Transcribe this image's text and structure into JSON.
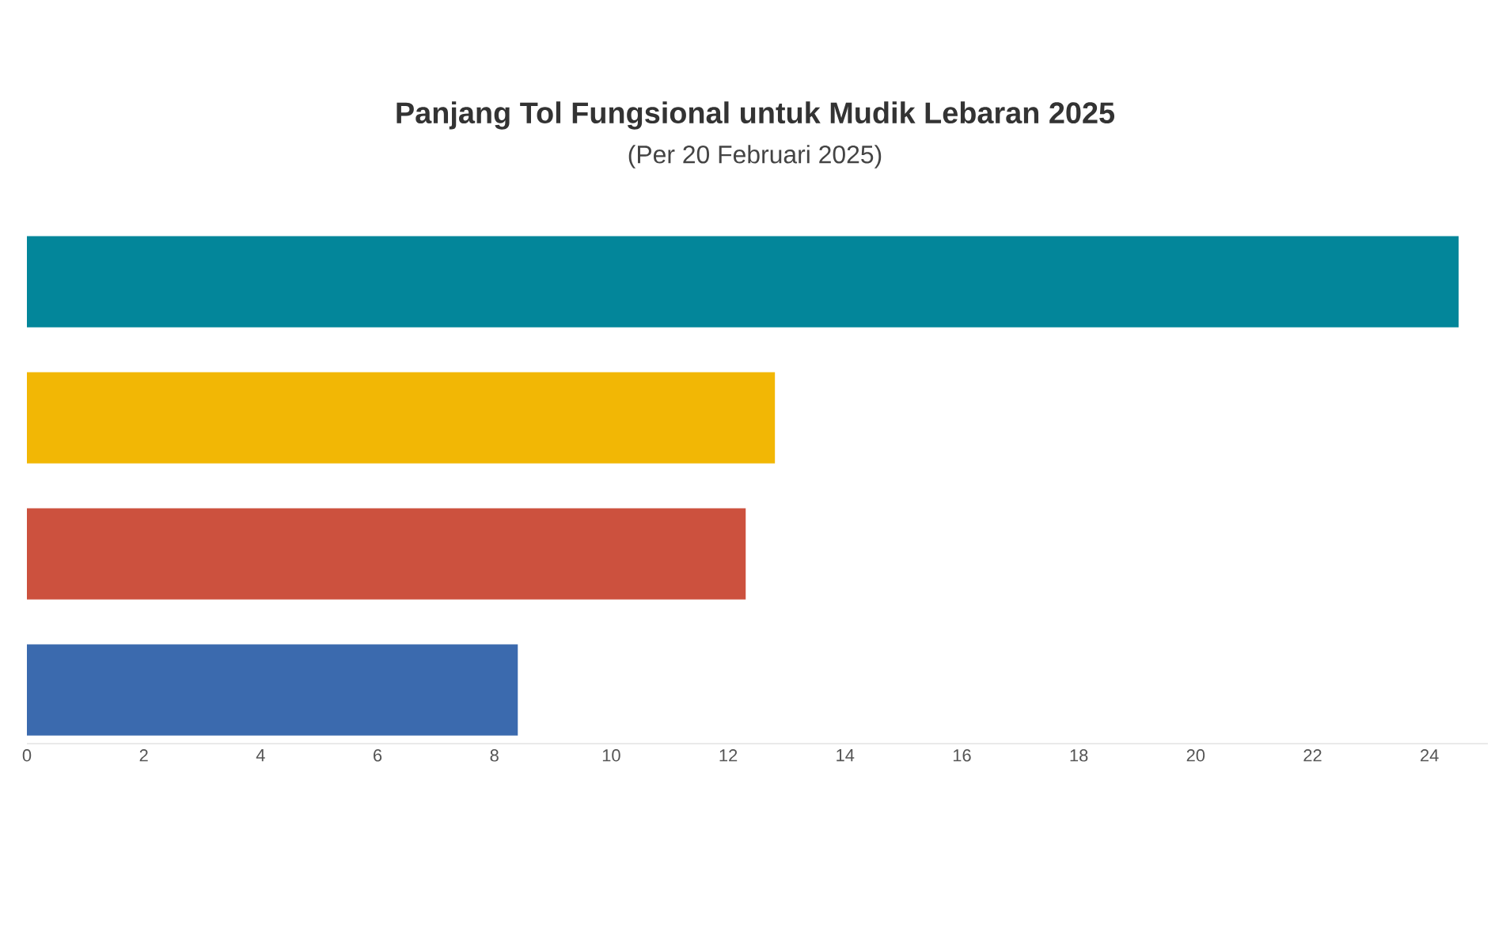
{
  "chart_data": {
    "type": "bar",
    "orientation": "horizontal",
    "title": "Panjang Tol Fungsional untuk Mudik Lebaran 2025",
    "subtitle": "(Per 20 Februari 2025)",
    "categories": [
      null,
      null,
      null,
      null
    ],
    "values": [
      24.5,
      12.8,
      12.3,
      8.4
    ],
    "colors": [
      "#03869a",
      "#f2b705",
      "#cc513e",
      "#3b6aae"
    ],
    "xlim": [
      0,
      25
    ],
    "xticks": [
      0,
      2,
      4,
      6,
      8,
      10,
      12,
      14,
      16,
      18,
      20,
      22,
      24
    ]
  }
}
